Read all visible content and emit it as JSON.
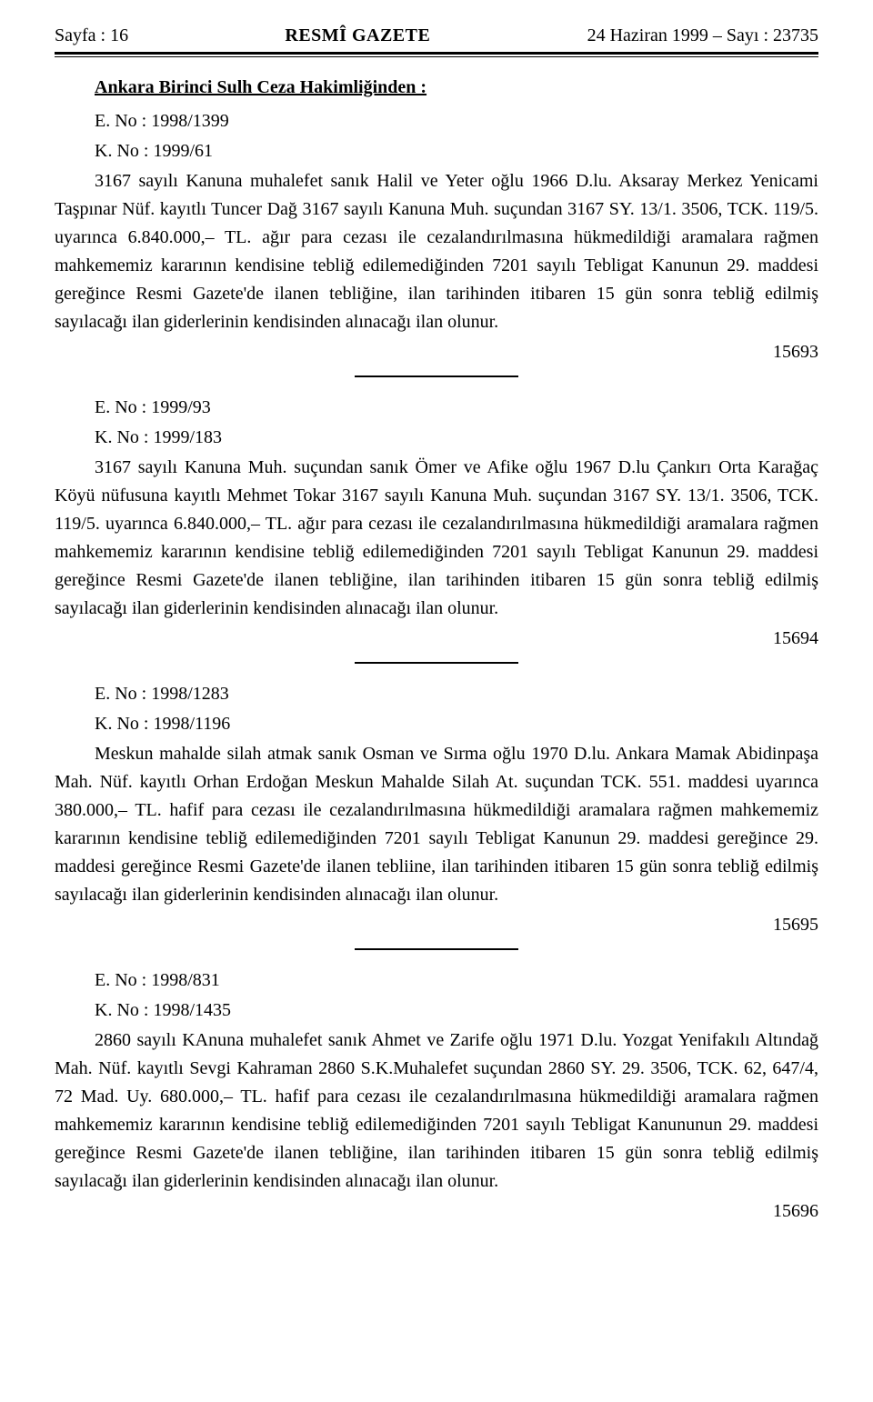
{
  "header": {
    "left": "Sayfa : 16",
    "center": "RESMÎ GAZETE",
    "right": "24 Haziran 1999 – Sayı : 23735"
  },
  "court_heading": "Ankara Birinci Sulh Ceza Hakimliğinden :",
  "entries": [
    {
      "e_no": "E. No : 1998/1399",
      "k_no": "K. No : 1999/61",
      "body": "3167 sayılı Kanuna muhalefet sanık Halil ve Yeter oğlu 1966 D.lu. Aksaray Merkez Yenicami Taşpınar Nüf. kayıtlı Tuncer Dağ 3167 sayılı Kanuna Muh. suçundan 3167 SY. 13/1. 3506, TCK. 119/5. uyarınca 6.840.000,– TL. ağır para cezası ile cezalandırılmasına hükmedildiği aramalara rağmen mahkememiz kararının kendisine tebliğ edilemediğinden 7201 sayılı Tebligat Kanunun 29. maddesi gereğince Resmi Gazete'de ilanen tebliğine, ilan tarihinden itibaren 15 gün sonra tebliğ edilmiş sayılacağı ilan giderlerinin kendisinden alınacağı ilan olunur.",
      "ref": "15693"
    },
    {
      "e_no": "E. No : 1999/93",
      "k_no": "K. No : 1999/183",
      "body": "3167 sayılı Kanuna Muh. suçundan sanık Ömer ve Afike oğlu 1967 D.lu Çankırı Orta Karağaç Köyü nüfusuna kayıtlı Mehmet Tokar 3167 sayılı Kanuna Muh. suçundan 3167 SY. 13/1. 3506, TCK. 119/5. uyarınca 6.840.000,– TL. ağır para cezası ile cezalandırılmasına hükmedildiği aramalara rağmen mahkememiz kararının kendisine tebliğ edilemediğinden 7201 sayılı Tebligat Kanunun 29. maddesi gereğince Resmi Gazete'de ilanen tebliğine, ilan tarihinden itibaren 15 gün sonra tebliğ edilmiş sayılacağı ilan giderlerinin kendisinden alınacağı ilan olunur.",
      "ref": "15694"
    },
    {
      "e_no": "E. No : 1998/1283",
      "k_no": "K. No : 1998/1196",
      "body": "Meskun mahalde silah atmak sanık Osman ve Sırma oğlu 1970 D.lu. Ankara Mamak Abidinpaşa Mah. Nüf. kayıtlı Orhan Erdoğan Meskun Mahalde Silah At. suçundan TCK. 551. maddesi uyarınca 380.000,– TL. hafif para cezası ile cezalandırılmasına hükmedildiği aramalara rağmen mahkememiz kararının kendisine tebliğ edilemediğinden 7201 sayılı Tebligat Kanunun 29. maddesi gereğince 29. maddesi gereğince Resmi Gazete'de ilanen tebliine, ilan tarihinden itibaren 15 gün sonra tebliğ edilmiş sayılacağı ilan giderlerinin kendisinden alınacağı ilan olunur.",
      "ref": "15695"
    },
    {
      "e_no": "E. No : 1998/831",
      "k_no": "K. No : 1998/1435",
      "body": "2860 sayılı KAnuna muhalefet sanık Ahmet ve Zarife oğlu 1971 D.lu. Yozgat Yenifakılı Altındağ Mah. Nüf. kayıtlı Sevgi Kahraman 2860 S.K.Muhalefet suçundan 2860 SY. 29. 3506, TCK. 62, 647/4, 72 Mad. Uy. 680.000,– TL. hafif para cezası ile cezalandırılmasına hükmedildiği aramalara rağmen mahkememiz kararının kendisine tebliğ edilemediğinden 7201 sayılı Tebligat Kanununun 29. maddesi gereğince Resmi Gazete'de ilanen tebliğine, ilan tarihinden itibaren 15 gün sonra tebliğ edilmiş sayılacağı ilan giderlerinin kendisinden alınacağı ilan olunur.",
      "ref": "15696"
    }
  ]
}
